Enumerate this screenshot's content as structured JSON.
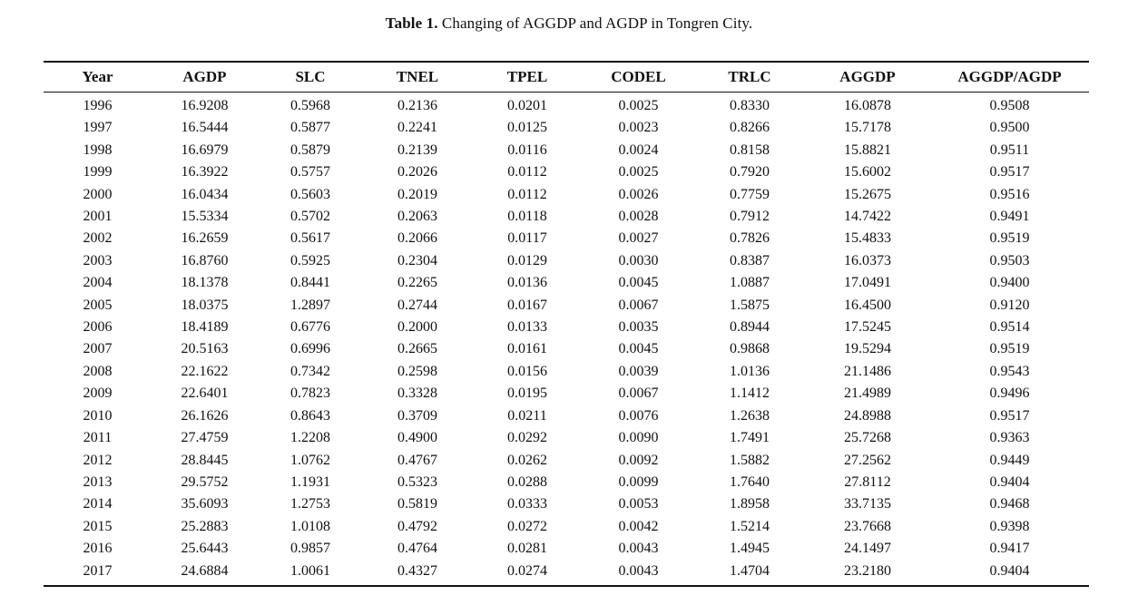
{
  "caption": {
    "label": "Table 1.",
    "text": " Changing of AGGDP and AGDP in Tongren City."
  },
  "table": {
    "columns": [
      "Year",
      "AGDP",
      "SLC",
      "TNEL",
      "TPEL",
      "CODEL",
      "TRLC",
      "AGGDP",
      "AGGDP/AGDP"
    ],
    "rows": [
      [
        "1996",
        "16.9208",
        "0.5968",
        "0.2136",
        "0.0201",
        "0.0025",
        "0.8330",
        "16.0878",
        "0.9508"
      ],
      [
        "1997",
        "16.5444",
        "0.5877",
        "0.2241",
        "0.0125",
        "0.0023",
        "0.8266",
        "15.7178",
        "0.9500"
      ],
      [
        "1998",
        "16.6979",
        "0.5879",
        "0.2139",
        "0.0116",
        "0.0024",
        "0.8158",
        "15.8821",
        "0.9511"
      ],
      [
        "1999",
        "16.3922",
        "0.5757",
        "0.2026",
        "0.0112",
        "0.0025",
        "0.7920",
        "15.6002",
        "0.9517"
      ],
      [
        "2000",
        "16.0434",
        "0.5603",
        "0.2019",
        "0.0112",
        "0.0026",
        "0.7759",
        "15.2675",
        "0.9516"
      ],
      [
        "2001",
        "15.5334",
        "0.5702",
        "0.2063",
        "0.0118",
        "0.0028",
        "0.7912",
        "14.7422",
        "0.9491"
      ],
      [
        "2002",
        "16.2659",
        "0.5617",
        "0.2066",
        "0.0117",
        "0.0027",
        "0.7826",
        "15.4833",
        "0.9519"
      ],
      [
        "2003",
        "16.8760",
        "0.5925",
        "0.2304",
        "0.0129",
        "0.0030",
        "0.8387",
        "16.0373",
        "0.9503"
      ],
      [
        "2004",
        "18.1378",
        "0.8441",
        "0.2265",
        "0.0136",
        "0.0045",
        "1.0887",
        "17.0491",
        "0.9400"
      ],
      [
        "2005",
        "18.0375",
        "1.2897",
        "0.2744",
        "0.0167",
        "0.0067",
        "1.5875",
        "16.4500",
        "0.9120"
      ],
      [
        "2006",
        "18.4189",
        "0.6776",
        "0.2000",
        "0.0133",
        "0.0035",
        "0.8944",
        "17.5245",
        "0.9514"
      ],
      [
        "2007",
        "20.5163",
        "0.6996",
        "0.2665",
        "0.0161",
        "0.0045",
        "0.9868",
        "19.5294",
        "0.9519"
      ],
      [
        "2008",
        "22.1622",
        "0.7342",
        "0.2598",
        "0.0156",
        "0.0039",
        "1.0136",
        "21.1486",
        "0.9543"
      ],
      [
        "2009",
        "22.6401",
        "0.7823",
        "0.3328",
        "0.0195",
        "0.0067",
        "1.1412",
        "21.4989",
        "0.9496"
      ],
      [
        "2010",
        "26.1626",
        "0.8643",
        "0.3709",
        "0.0211",
        "0.0076",
        "1.2638",
        "24.8988",
        "0.9517"
      ],
      [
        "2011",
        "27.4759",
        "1.2208",
        "0.4900",
        "0.0292",
        "0.0090",
        "1.7491",
        "25.7268",
        "0.9363"
      ],
      [
        "2012",
        "28.8445",
        "1.0762",
        "0.4767",
        "0.0262",
        "0.0092",
        "1.5882",
        "27.2562",
        "0.9449"
      ],
      [
        "2013",
        "29.5752",
        "1.1931",
        "0.5323",
        "0.0288",
        "0.0099",
        "1.7640",
        "27.8112",
        "0.9404"
      ],
      [
        "2014",
        "35.6093",
        "1.2753",
        "0.5819",
        "0.0333",
        "0.0053",
        "1.8958",
        "33.7135",
        "0.9468"
      ],
      [
        "2015",
        "25.2883",
        "1.0108",
        "0.4792",
        "0.0272",
        "0.0042",
        "1.5214",
        "23.7668",
        "0.9398"
      ],
      [
        "2016",
        "25.6443",
        "0.9857",
        "0.4764",
        "0.0281",
        "0.0043",
        "1.4945",
        "24.1497",
        "0.9417"
      ],
      [
        "2017",
        "24.6884",
        "1.0061",
        "0.4327",
        "0.0274",
        "0.0043",
        "1.4704",
        "23.2180",
        "0.9404"
      ]
    ]
  }
}
